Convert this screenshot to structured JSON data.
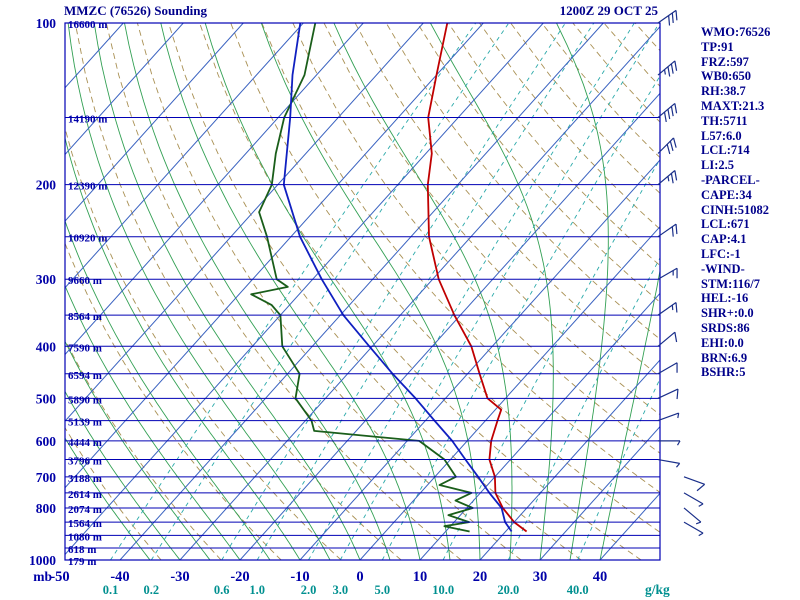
{
  "header": {
    "title": "MMZC (76526) Sounding",
    "datetime": "1200Z 29 OCT 25"
  },
  "axes": {
    "pressure_unit": "mb",
    "pressure_ticks": [
      100,
      200,
      300,
      400,
      500,
      600,
      700,
      800,
      1000
    ],
    "isobar_levels": [
      100,
      150,
      200,
      250,
      300,
      350,
      400,
      450,
      500,
      550,
      600,
      650,
      700,
      750,
      800,
      850,
      900,
      950,
      1000
    ],
    "height_labels": [
      {
        "p": 100,
        "text": "16600 m"
      },
      {
        "p": 150,
        "text": "14190 m"
      },
      {
        "p": 200,
        "text": "12390 m"
      },
      {
        "p": 250,
        "text": "10920 m"
      },
      {
        "p": 300,
        "text": "9660 m"
      },
      {
        "p": 350,
        "text": "8564 m"
      },
      {
        "p": 400,
        "text": "7590 m"
      },
      {
        "p": 450,
        "text": "6594 m"
      },
      {
        "p": 500,
        "text": "5890 m"
      },
      {
        "p": 550,
        "text": "5139 m"
      },
      {
        "p": 600,
        "text": "4444 m"
      },
      {
        "p": 650,
        "text": "3796 m"
      },
      {
        "p": 700,
        "text": "3188 m"
      },
      {
        "p": 750,
        "text": "2614 m"
      },
      {
        "p": 800,
        "text": "2074 m"
      },
      {
        "p": 850,
        "text": "1564 m"
      },
      {
        "p": 900,
        "text": "1080 m"
      },
      {
        "p": 950,
        "text": "618 m"
      },
      {
        "p": 1000,
        "text": "179 m"
      }
    ],
    "temp_ticks": [
      -50,
      -40,
      -30,
      -20,
      -10,
      0,
      10,
      20,
      30,
      40
    ],
    "mixing_ticks": [
      "0.1",
      "0.2",
      "0.6",
      "1.0",
      "2.0",
      "3.0",
      "5.0",
      "10.0",
      "20.0",
      "40.0"
    ],
    "mixing_unit": "g/kg"
  },
  "indices": [
    "WMO:76526",
    "TP:91",
    "FRZ:597",
    "WB0:650",
    "RH:38.7",
    "MAXT:21.3",
    "TH:5711",
    "L57:6.0",
    "LCL:714",
    "LI:2.5",
    "-PARCEL-",
    "CAPE:34",
    "CINH:51082",
    "LCL:671",
    "CAP:4.1",
    "LFC:-1",
    "-WIND-",
    "STM:116/7",
    "HEL:-16",
    "SHR+:0.0",
    "SRDS:86",
    "EHI:0.0",
    "BRN:6.9",
    "BSHR:5"
  ],
  "chart_data": {
    "type": "skewt-log-p",
    "pressure_axis": {
      "min": 100,
      "max": 1000,
      "scale": "log",
      "unit": "mb"
    },
    "temperature_axis": {
      "min": -50,
      "max": 40,
      "unit": "C",
      "skewed": true
    },
    "temperature_curve": [
      [
        885,
        23.5
      ],
      [
        850,
        20
      ],
      [
        800,
        16
      ],
      [
        750,
        12.5
      ],
      [
        700,
        10
      ],
      [
        650,
        6.5
      ],
      [
        600,
        4
      ],
      [
        550,
        2
      ],
      [
        525,
        1
      ],
      [
        500,
        -3
      ],
      [
        450,
        -8
      ],
      [
        400,
        -13.5
      ],
      [
        350,
        -21
      ],
      [
        300,
        -29
      ],
      [
        250,
        -37
      ],
      [
        200,
        -45
      ],
      [
        175,
        -49
      ],
      [
        150,
        -55
      ],
      [
        125,
        -60
      ],
      [
        100,
        -66
      ]
    ],
    "dewpoint_curve": [
      [
        885,
        14
      ],
      [
        865,
        9
      ],
      [
        850,
        12.5
      ],
      [
        825,
        8
      ],
      [
        800,
        11
      ],
      [
        775,
        7
      ],
      [
        750,
        8.5
      ],
      [
        725,
        2
      ],
      [
        700,
        3.5
      ],
      [
        650,
        -1
      ],
      [
        600,
        -8
      ],
      [
        575,
        -27
      ],
      [
        550,
        -29
      ],
      [
        500,
        -35
      ],
      [
        450,
        -38
      ],
      [
        400,
        -45
      ],
      [
        350,
        -50
      ],
      [
        335,
        -53
      ],
      [
        320,
        -58
      ],
      [
        310,
        -53
      ],
      [
        300,
        -56
      ],
      [
        250,
        -64
      ],
      [
        225,
        -69
      ],
      [
        200,
        -71
      ],
      [
        175,
        -75
      ],
      [
        150,
        -79
      ],
      [
        125,
        -82
      ],
      [
        100,
        -88
      ]
    ],
    "wetbulb_curve": [
      [
        885,
        21
      ],
      [
        850,
        18.5
      ],
      [
        800,
        15.8
      ],
      [
        750,
        11.5
      ],
      [
        700,
        7.2
      ],
      [
        650,
        2.5
      ],
      [
        600,
        -2.5
      ],
      [
        550,
        -8.5
      ],
      [
        500,
        -15
      ],
      [
        450,
        -22.5
      ],
      [
        400,
        -30.5
      ],
      [
        350,
        -39.5
      ],
      [
        300,
        -48.5
      ],
      [
        250,
        -58.5
      ],
      [
        200,
        -69
      ],
      [
        150,
        -78
      ],
      [
        125,
        -84
      ],
      [
        100,
        -90.5
      ]
    ],
    "winds": [
      {
        "p": 100,
        "dir": 55,
        "spd": 30
      },
      {
        "p": 125,
        "dir": 50,
        "spd": 35
      },
      {
        "p": 150,
        "dir": 50,
        "spd": 40
      },
      {
        "p": 175,
        "dir": 45,
        "spd": 30
      },
      {
        "p": 200,
        "dir": 50,
        "spd": 25
      },
      {
        "p": 250,
        "dir": 55,
        "spd": 20
      },
      {
        "p": 300,
        "dir": 60,
        "spd": 15
      },
      {
        "p": 350,
        "dir": 55,
        "spd": 15
      },
      {
        "p": 400,
        "dir": 50,
        "spd": 10
      },
      {
        "p": 450,
        "dir": 60,
        "spd": 10
      },
      {
        "p": 500,
        "dir": 65,
        "spd": 10
      },
      {
        "p": 550,
        "dir": 70,
        "spd": 5
      },
      {
        "p": 600,
        "dir": 90,
        "spd": 5
      },
      {
        "p": 650,
        "dir": 100,
        "spd": 5
      },
      {
        "p": 700,
        "dir": 110,
        "spd": 10
      },
      {
        "p": 750,
        "dir": 120,
        "spd": 5
      },
      {
        "p": 800,
        "dir": 130,
        "spd": 5
      },
      {
        "p": 850,
        "dir": 120,
        "spd": 5
      }
    ],
    "dry_adiabats_theta_K": {
      "start": 240,
      "end": 480,
      "step": 10
    },
    "moist_adiabats_start_C": {
      "start": -35,
      "end": 40,
      "step": 5
    },
    "mixing_ratio_lines": [
      0.1,
      0.2,
      0.6,
      1.0,
      2.0,
      3.0,
      5.0,
      10.0,
      20.0,
      40.0
    ]
  },
  "colors": {
    "temperature": "#c00000",
    "dewpoint": "#1a5e1a",
    "wetbulb": "#1020c0",
    "isobar": "#0000b4",
    "isotherm": "#3a62c0",
    "dry_adiabat": "#a08440",
    "moist_adiabat": "#33a054",
    "mixing_ratio": "#2aa9a9",
    "mixing_label": "#009090",
    "axis_label": "#0000a8",
    "panel_text": "#00008b",
    "wind": "#1a2f8a"
  }
}
